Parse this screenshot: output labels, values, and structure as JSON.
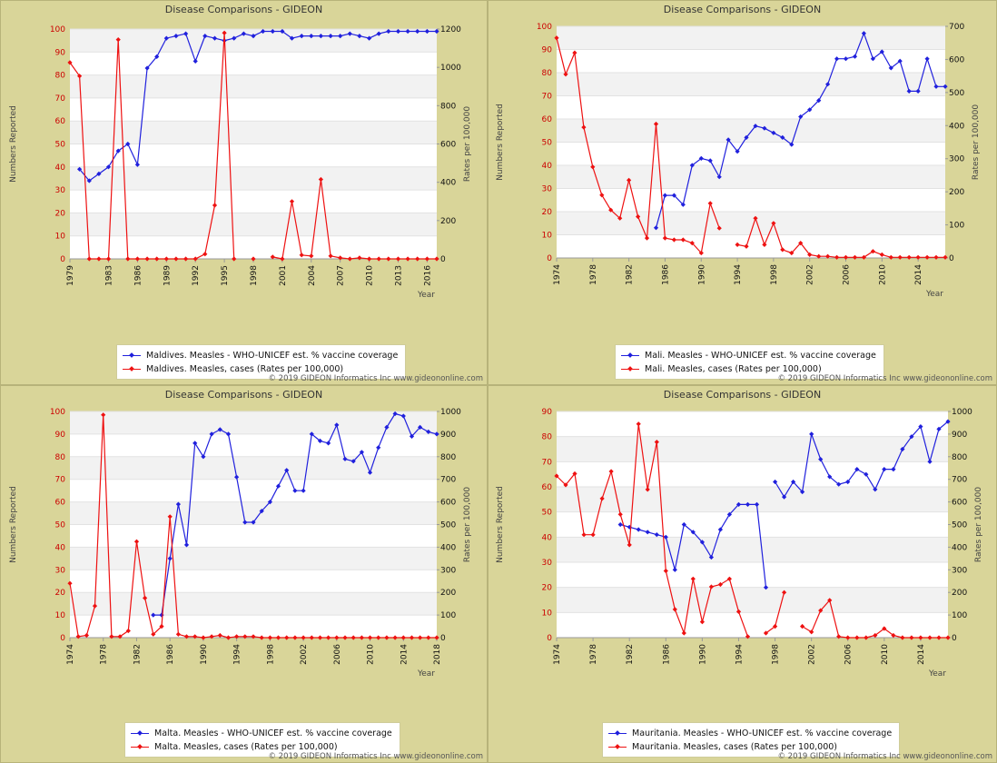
{
  "page": {
    "background": "#ffffff"
  },
  "colors": {
    "vaccine": "#2020dd",
    "cases": "#ee1111",
    "panel_bg": "#d9d599",
    "plot_band": "#f2f2f2",
    "left_ticks": "#cc0000"
  },
  "chart_data": [
    {
      "type": "line",
      "title": "Disease Comparisons - GIDEON",
      "xlabel": "Year",
      "ylabel": "Numbers Reported",
      "y2label": "Rates per 100,000",
      "xlim": [
        1979,
        2017
      ],
      "xticks": [
        1979,
        1983,
        1986,
        1989,
        1992,
        1995,
        1998,
        2001,
        2004,
        2007,
        2010,
        2013,
        2016
      ],
      "ylim": [
        0,
        100
      ],
      "yticks": [
        0,
        10,
        20,
        30,
        40,
        50,
        60,
        70,
        80,
        90,
        100
      ],
      "y2lim": [
        0,
        1200
      ],
      "y2ticks": [
        0,
        200,
        400,
        600,
        800,
        1000,
        1200
      ],
      "copyright": "© 2019 GIDEON Informatics Inc www.gideononline.com",
      "series": [
        {
          "name": "Maldives. Measles - WHO-UNICEF est. % vaccine coverage",
          "axis": "left",
          "color": "#2020dd",
          "x": [
            1980,
            1981,
            1982,
            1983,
            1984,
            1985,
            1986,
            1987,
            1988,
            1989,
            1990,
            1991,
            1992,
            1993,
            1994,
            1995,
            1996,
            1997,
            1998,
            1999,
            2000,
            2001,
            2002,
            2003,
            2004,
            2005,
            2006,
            2007,
            2008,
            2009,
            2010,
            2011,
            2012,
            2013,
            2014,
            2015,
            2016,
            2017
          ],
          "y": [
            39,
            34,
            37,
            40,
            47,
            50,
            41,
            83,
            88,
            96,
            97,
            98,
            86,
            97,
            96,
            95,
            96,
            98,
            97,
            99,
            99,
            99,
            96,
            97,
            97,
            97,
            97,
            97,
            98,
            97,
            96,
            98,
            99,
            99,
            99,
            99,
            99,
            99
          ]
        },
        {
          "name": "Maldives. Measles, cases (Rates per 100,000)",
          "axis": "right",
          "color": "#ee1111",
          "segments": [
            {
              "x": [
                1979,
                1980,
                1981,
                1982,
                1983,
                1984,
                1985,
                1986,
                1987,
                1988,
                1989,
                1990,
                1991,
                1992,
                1993,
                1994,
                1995,
                1996
              ],
              "y": [
                1025,
                955,
                0,
                0,
                0,
                1145,
                0,
                0,
                0,
                0,
                0,
                0,
                0,
                0,
                25,
                280,
                1180,
                0
              ]
            },
            {
              "x": [
                1998
              ],
              "y": [
                0
              ]
            },
            {
              "x": [
                2000,
                2001,
                2002,
                2003,
                2004,
                2005,
                2006,
                2007,
                2008,
                2009,
                2010,
                2011,
                2012,
                2013,
                2014,
                2015,
                2016,
                2017
              ],
              "y": [
                10,
                0,
                300,
                20,
                15,
                415,
                15,
                5,
                0,
                5,
                0,
                0,
                0,
                0,
                0,
                0,
                0,
                0
              ]
            }
          ]
        }
      ]
    },
    {
      "type": "line",
      "title": "Disease Comparisons - GIDEON",
      "xlabel": "Year",
      "ylabel": "Numbers Reported",
      "y2label": "Rates per 100,000",
      "xlim": [
        1974,
        2017
      ],
      "xticks": [
        1974,
        1978,
        1982,
        1986,
        1990,
        1994,
        1998,
        2002,
        2006,
        2010,
        2014
      ],
      "ylim": [
        0,
        100
      ],
      "yticks": [
        0,
        10,
        20,
        30,
        40,
        50,
        60,
        70,
        80,
        90,
        100
      ],
      "y2lim": [
        0,
        700
      ],
      "y2ticks": [
        0,
        100,
        200,
        300,
        400,
        500,
        600,
        700
      ],
      "copyright": "© 2019 GIDEON Informatics Inc www.gideononline.com",
      "series": [
        {
          "name": "Mali. Measles - WHO-UNICEF est. % vaccine coverage",
          "axis": "left",
          "color": "#2020dd",
          "x": [
            1985,
            1986,
            1987,
            1988,
            1989,
            1990,
            1991,
            1992,
            1993,
            1994,
            1995,
            1996,
            1997,
            1998,
            1999,
            2000,
            2001,
            2002,
            2003,
            2004,
            2005,
            2006,
            2007,
            2008,
            2009,
            2010,
            2011,
            2012,
            2013,
            2014,
            2015,
            2016,
            2017
          ],
          "y": [
            13,
            27,
            27,
            23,
            40,
            43,
            42,
            35,
            51,
            46,
            52,
            57,
            56,
            54,
            52,
            49,
            61,
            64,
            68,
            75,
            86,
            86,
            87,
            97,
            86,
            89,
            82,
            85,
            72,
            72,
            86,
            74,
            74
          ]
        },
        {
          "name": "Mali. Measles, cases (Rates per 100,000)",
          "axis": "right",
          "color": "#ee1111",
          "segments": [
            {
              "x": [
                1974,
                1975,
                1976,
                1977,
                1978,
                1979,
                1980,
                1981,
                1982,
                1983,
                1984,
                1985,
                1986,
                1987,
                1988,
                1989,
                1990,
                1991,
                1992
              ],
              "y": [
                665,
                555,
                620,
                395,
                275,
                190,
                145,
                120,
                235,
                125,
                60,
                405,
                60,
                55,
                55,
                45,
                15,
                165,
                90
              ]
            },
            {
              "x": [
                1994,
                1995,
                1996,
                1997,
                1998,
                1999,
                2000,
                2001,
                2002,
                2003,
                2004,
                2005,
                2006,
                2007,
                2008,
                2009,
                2010,
                2011,
                2012,
                2013,
                2014,
                2015,
                2016,
                2017
              ],
              "y": [
                40,
                35,
                120,
                40,
                105,
                25,
                15,
                45,
                10,
                5,
                5,
                2,
                2,
                2,
                2,
                20,
                10,
                2,
                2,
                2,
                2,
                2,
                2,
                2
              ]
            }
          ]
        }
      ]
    },
    {
      "type": "line",
      "title": "Disease Comparisons - GIDEON",
      "xlabel": "Year",
      "ylabel": "Numbers Reported",
      "y2label": "Rates per 100,000",
      "xlim": [
        1974,
        2018
      ],
      "xticks": [
        1974,
        1978,
        1982,
        1986,
        1990,
        1994,
        1998,
        2002,
        2006,
        2010,
        2014,
        2018
      ],
      "ylim": [
        0,
        100
      ],
      "yticks": [
        0,
        10,
        20,
        30,
        40,
        50,
        60,
        70,
        80,
        90,
        100
      ],
      "y2lim": [
        0,
        1000
      ],
      "y2ticks": [
        0,
        100,
        200,
        300,
        400,
        500,
        600,
        700,
        800,
        900,
        1000
      ],
      "copyright": "© 2019 GIDEON Informatics Inc www.gideononline.com",
      "series": [
        {
          "name": "Malta. Measles - WHO-UNICEF est. % vaccine coverage",
          "axis": "left",
          "color": "#2020dd",
          "x": [
            1984,
            1985,
            1986,
            1987,
            1988,
            1989,
            1990,
            1991,
            1992,
            1993,
            1994,
            1995,
            1996,
            1997,
            1998,
            1999,
            2000,
            2001,
            2002,
            2003,
            2004,
            2005,
            2006,
            2007,
            2008,
            2009,
            2010,
            2011,
            2012,
            2013,
            2014,
            2015,
            2016,
            2017,
            2018
          ],
          "y": [
            10,
            10,
            35,
            59,
            41,
            86,
            80,
            90,
            92,
            90,
            71,
            51,
            51,
            56,
            60,
            67,
            74,
            65,
            65,
            90,
            87,
            86,
            94,
            79,
            78,
            82,
            73,
            84,
            93,
            99,
            98,
            89,
            93,
            91,
            90
          ]
        },
        {
          "name": "Malta. Measles, cases (Rates per 100,000)",
          "axis": "right",
          "color": "#ee1111",
          "segments": [
            {
              "x": [
                1974,
                1975,
                1976,
                1977,
                1978,
                1979,
                1980,
                1981,
                1982,
                1983,
                1984,
                1985,
                1986,
                1987,
                1988,
                1989,
                1990,
                1991,
                1992,
                1993,
                1994,
                1995,
                1996,
                1997,
                1998,
                1999,
                2000,
                2001,
                2002,
                2003,
                2004,
                2005,
                2006,
                2007,
                2008,
                2009,
                2010,
                2011,
                2012,
                2013,
                2014,
                2015,
                2016,
                2017,
                2018
              ],
              "y": [
                240,
                5,
                10,
                140,
                985,
                5,
                5,
                30,
                425,
                175,
                15,
                50,
                535,
                15,
                5,
                5,
                0,
                5,
                10,
                0,
                5,
                5,
                5,
                0,
                0,
                0,
                0,
                0,
                0,
                0,
                0,
                0,
                0,
                0,
                0,
                0,
                0,
                0,
                0,
                0,
                0,
                0,
                0,
                0,
                0
              ]
            }
          ]
        }
      ]
    },
    {
      "type": "line",
      "title": "Disease Comparisons - GIDEON",
      "xlabel": "Year",
      "ylabel": "Numbers Reported",
      "y2label": "Rates per 100,000",
      "xlim": [
        1974,
        2017
      ],
      "xticks": [
        1974,
        1978,
        1982,
        1986,
        1990,
        1994,
        1998,
        2002,
        2006,
        2010,
        2014
      ],
      "ylim": [
        0,
        90
      ],
      "yticks": [
        0,
        10,
        20,
        30,
        40,
        50,
        60,
        70,
        80,
        90
      ],
      "y2lim": [
        0,
        1000
      ],
      "y2ticks": [
        0,
        100,
        200,
        300,
        400,
        500,
        600,
        700,
        800,
        900,
        1000
      ],
      "copyright": "© 2019 GIDEON Informatics Inc www.gideononline.com",
      "series": [
        {
          "name": "Mauritania. Measles - WHO-UNICEF est. % vaccine coverage",
          "axis": "left",
          "color": "#2020dd",
          "segments": [
            {
              "x": [
                1981,
                1982,
                1983,
                1984,
                1985,
                1986,
                1987,
                1988,
                1989,
                1990,
                1991,
                1992,
                1993,
                1994,
                1995,
                1996,
                1997
              ],
              "y": [
                45,
                44,
                43,
                42,
                41,
                40,
                27,
                45,
                42,
                38,
                32,
                43,
                49,
                53,
                53,
                53,
                20
              ]
            },
            {
              "x": [
                1998,
                1999,
                2000,
                2001,
                2002,
                2003,
                2004,
                2005,
                2006,
                2007,
                2008,
                2009,
                2010,
                2011,
                2012,
                2013,
                2014,
                2015,
                2016,
                2017
              ],
              "y": [
                62,
                56,
                62,
                58,
                81,
                71,
                64,
                61,
                62,
                67,
                65,
                59,
                67,
                67,
                75,
                80,
                84,
                70,
                83,
                86
              ]
            }
          ]
        },
        {
          "name": "Mauritania. Measles, cases (Rates per 100,000)",
          "axis": "right",
          "color": "#ee1111",
          "segments": [
            {
              "x": [
                1974,
                1975,
                1976,
                1977,
                1978,
                1979,
                1980,
                1981,
                1982,
                1983,
                1984,
                1985,
                1986,
                1987,
                1988,
                1989,
                1990,
                1991,
                1992,
                1993,
                1994,
                1995
              ],
              "y": [
                715,
                675,
                725,
                455,
                455,
                615,
                735,
                545,
                410,
                945,
                655,
                865,
                295,
                125,
                20,
                260,
                70,
                225,
                235,
                260,
                115,
                5
              ]
            },
            {
              "x": [
                1997,
                1998,
                1999
              ],
              "y": [
                20,
                50,
                200
              ]
            },
            {
              "x": [
                2001,
                2002,
                2003,
                2004,
                2005,
                2006,
                2007,
                2008,
                2009,
                2010,
                2011,
                2012,
                2013,
                2014,
                2015,
                2016,
                2017
              ],
              "y": [
                50,
                25,
                120,
                165,
                5,
                0,
                0,
                0,
                10,
                40,
                10,
                0,
                0,
                0,
                0,
                0,
                0
              ]
            }
          ]
        }
      ]
    }
  ]
}
